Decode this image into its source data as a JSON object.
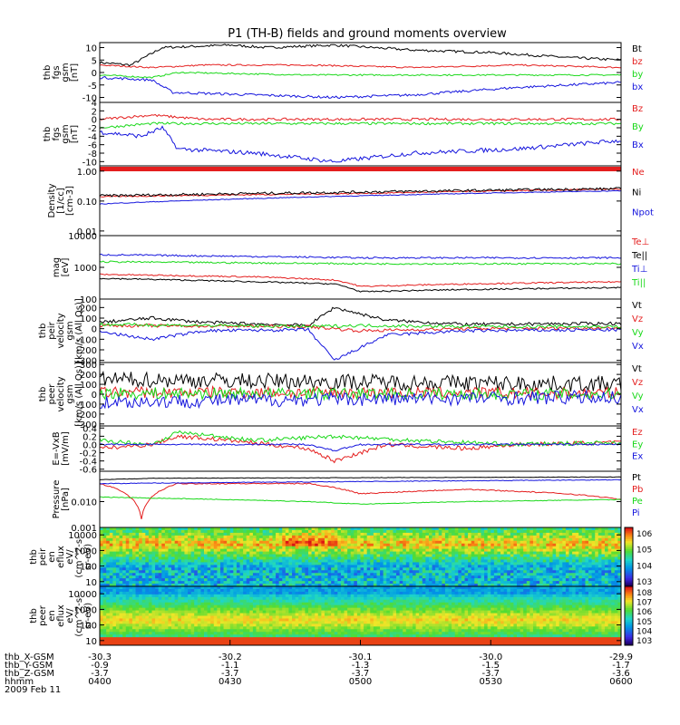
{
  "title": "P1 (TH-B) fields and ground moments overview",
  "colors": {
    "black": "#000000",
    "red": "#e41e1e",
    "green": "#18d818",
    "blue": "#1515dd"
  },
  "chart_data": [
    {
      "type": "line",
      "id": "p1",
      "ylabel": [
        "thb",
        "fgs",
        "gsm",
        "[nT]"
      ],
      "yticks": [
        "10",
        "5",
        "0",
        "-5",
        "-10"
      ],
      "ylim": [
        -12,
        12
      ],
      "log": false,
      "series": [
        {
          "name": "Bt",
          "color": "black",
          "anchors": [
            [
              0,
              4
            ],
            [
              0.06,
              3
            ],
            [
              0.12,
              10
            ],
            [
              0.25,
              11
            ],
            [
              0.32,
              10
            ],
            [
              0.45,
              11
            ],
            [
              0.6,
              9
            ],
            [
              0.75,
              8
            ],
            [
              0.9,
              6
            ],
            [
              1,
              5
            ]
          ],
          "noise": 0.5
        },
        {
          "name": "bz",
          "color": "red",
          "anchors": [
            [
              0,
              3
            ],
            [
              0.1,
              2
            ],
            [
              0.2,
              3
            ],
            [
              0.4,
              3
            ],
            [
              0.6,
              2
            ],
            [
              0.8,
              3
            ],
            [
              1,
              2
            ]
          ],
          "noise": 0.3
        },
        {
          "name": "by",
          "color": "green",
          "anchors": [
            [
              0,
              -1
            ],
            [
              0.1,
              -2
            ],
            [
              0.15,
              0
            ],
            [
              0.4,
              -1
            ],
            [
              0.6,
              -1
            ],
            [
              0.8,
              -1
            ],
            [
              1,
              -1
            ]
          ],
          "noise": 0.3
        },
        {
          "name": "bx",
          "color": "blue",
          "anchors": [
            [
              0,
              -2
            ],
            [
              0.1,
              -3
            ],
            [
              0.14,
              -8
            ],
            [
              0.3,
              -9
            ],
            [
              0.45,
              -10
            ],
            [
              0.6,
              -9
            ],
            [
              0.8,
              -6
            ],
            [
              1,
              -4
            ]
          ],
          "noise": 0.5
        }
      ]
    },
    {
      "type": "line",
      "id": "p2",
      "ylabel": [
        "thb",
        "fgs",
        "gsm",
        "[nT]"
      ],
      "yticks": [
        "4",
        "2",
        "0",
        "-2",
        "-4",
        "-6",
        "-8",
        "-10"
      ],
      "ylim": [
        -11,
        4
      ],
      "log": false,
      "series": [
        {
          "name": "Bz",
          "color": "red",
          "anchors": [
            [
              0,
              0
            ],
            [
              0.1,
              1
            ],
            [
              0.2,
              0
            ],
            [
              0.5,
              0
            ],
            [
              0.8,
              0
            ],
            [
              1,
              0
            ]
          ],
          "noise": 0.3
        },
        {
          "name": "By",
          "color": "green",
          "anchors": [
            [
              0,
              -2
            ],
            [
              0.1,
              -1
            ],
            [
              0.2,
              -1
            ],
            [
              0.5,
              -1
            ],
            [
              0.8,
              -1
            ],
            [
              1,
              -1
            ]
          ],
          "noise": 0.3
        },
        {
          "name": "Bx",
          "color": "blue",
          "anchors": [
            [
              0,
              -3
            ],
            [
              0.08,
              -4
            ],
            [
              0.12,
              -2
            ],
            [
              0.15,
              -7
            ],
            [
              0.3,
              -8
            ],
            [
              0.45,
              -10
            ],
            [
              0.6,
              -8
            ],
            [
              0.8,
              -7
            ],
            [
              1,
              -5
            ]
          ],
          "noise": 0.5
        }
      ]
    },
    {
      "type": "line",
      "id": "p3",
      "ylabel": [
        "Density",
        "[1/cc]",
        "[cm-3]"
      ],
      "yticks": [
        "1.00",
        "0.10",
        "0.01"
      ],
      "ylim": [
        0.007,
        1.5
      ],
      "log": true,
      "series": [
        {
          "name": "Ne",
          "color": "red",
          "anchors": [
            [
              0,
              0.14
            ],
            [
              0.5,
              0.18
            ],
            [
              1,
              0.25
            ]
          ],
          "noise": 0.05
        },
        {
          "name": "Ni",
          "color": "black",
          "anchors": [
            [
              0,
              0.15
            ],
            [
              0.5,
              0.2
            ],
            [
              1,
              0.26
            ]
          ],
          "noise": 0.1
        },
        {
          "name": "Npot",
          "color": "blue",
          "anchors": [
            [
              0,
              0.08
            ],
            [
              0.5,
              0.15
            ],
            [
              1,
              0.22
            ]
          ],
          "noise": 0.03
        }
      ]
    },
    {
      "type": "line",
      "id": "p4",
      "ylabel": [
        "mag",
        "[eV]"
      ],
      "yticks": [
        "10000",
        "1000",
        "100"
      ],
      "ylim": [
        100,
        10000
      ],
      "log": true,
      "series": [
        {
          "name": "Te⊥",
          "color": "red",
          "anchors": [
            [
              0,
              600
            ],
            [
              0.3,
              500
            ],
            [
              0.45,
              400
            ],
            [
              0.5,
              250
            ],
            [
              0.7,
              300
            ],
            [
              1,
              350
            ]
          ],
          "noise": 0.05
        },
        {
          "name": "Te||",
          "color": "black",
          "anchors": [
            [
              0,
              450
            ],
            [
              0.3,
              350
            ],
            [
              0.45,
              300
            ],
            [
              0.5,
              170
            ],
            [
              0.7,
              200
            ],
            [
              1,
              230
            ]
          ],
          "noise": 0.05
        },
        {
          "name": "Ti⊥",
          "color": "blue",
          "anchors": [
            [
              0,
              2500
            ],
            [
              0.5,
              2000
            ],
            [
              1,
              2000
            ]
          ],
          "noise": 0.06
        },
        {
          "name": "Ti||",
          "color": "green",
          "anchors": [
            [
              0,
              1500
            ],
            [
              0.5,
              1300
            ],
            [
              1,
              1300
            ]
          ],
          "noise": 0.06
        }
      ]
    },
    {
      "type": "line",
      "id": "p5",
      "ylabel": [
        "thb",
        "peir",
        "velocity",
        "gsm",
        "[km/s (All Qs)]"
      ],
      "yticks": [
        "200",
        "100",
        "0",
        "-100",
        "-200",
        "-300"
      ],
      "ylim": [
        -320,
        280
      ],
      "log": false,
      "series": [
        {
          "name": "Vt",
          "color": "black",
          "anchors": [
            [
              0,
              60
            ],
            [
              0.1,
              100
            ],
            [
              0.2,
              60
            ],
            [
              0.4,
              30
            ],
            [
              0.45,
              200
            ],
            [
              0.55,
              80
            ],
            [
              0.7,
              40
            ],
            [
              1,
              50
            ]
          ],
          "noise": 15
        },
        {
          "name": "Vz",
          "color": "red",
          "anchors": [
            [
              0,
              30
            ],
            [
              0.4,
              20
            ],
            [
              0.5,
              -20
            ],
            [
              0.7,
              0
            ],
            [
              1,
              10
            ]
          ],
          "noise": 15
        },
        {
          "name": "Vy",
          "color": "green",
          "anchors": [
            [
              0,
              40
            ],
            [
              0.4,
              20
            ],
            [
              0.5,
              30
            ],
            [
              0.7,
              20
            ],
            [
              1,
              20
            ]
          ],
          "noise": 15
        },
        {
          "name": "Vx",
          "color": "blue",
          "anchors": [
            [
              0,
              -30
            ],
            [
              0.1,
              -100
            ],
            [
              0.2,
              -20
            ],
            [
              0.4,
              -10
            ],
            [
              0.45,
              -300
            ],
            [
              0.55,
              -60
            ],
            [
              0.7,
              -20
            ],
            [
              1,
              -10
            ]
          ],
          "noise": 15
        }
      ]
    },
    {
      "type": "line",
      "id": "p6",
      "ylabel": [
        "thb",
        "peer",
        "velocity",
        "gsm",
        "[km/s (All Qs)]"
      ],
      "yticks": [
        "300",
        "200",
        "100",
        "0",
        "-100",
        "-200",
        "-300"
      ],
      "ylim": [
        -320,
        320
      ],
      "log": false,
      "series": [
        {
          "name": "Vt",
          "color": "black",
          "anchors": [
            [
              0,
              150
            ],
            [
              1,
              100
            ]
          ],
          "noise": 80
        },
        {
          "name": "Vz",
          "color": "red",
          "anchors": [
            [
              0,
              20
            ],
            [
              1,
              10
            ]
          ],
          "noise": 60
        },
        {
          "name": "Vy",
          "color": "green",
          "anchors": [
            [
              0,
              10
            ],
            [
              1,
              0
            ]
          ],
          "noise": 60
        },
        {
          "name": "Vx",
          "color": "blue",
          "anchors": [
            [
              0,
              -80
            ],
            [
              0.45,
              -50
            ],
            [
              1,
              -30
            ]
          ],
          "noise": 70
        }
      ]
    },
    {
      "type": "line",
      "id": "p7",
      "ylabel": [
        "E=-VxB",
        "[mV/m]"
      ],
      "yticks": [
        "0.4",
        "0.2",
        "0.0",
        "-0.2",
        "-0.4",
        "-0.6"
      ],
      "ylim": [
        -0.65,
        0.45
      ],
      "log": false,
      "series": [
        {
          "name": "Ez",
          "color": "red",
          "anchors": [
            [
              0,
              -0.1
            ],
            [
              0.1,
              0
            ],
            [
              0.15,
              0.2
            ],
            [
              0.25,
              0.1
            ],
            [
              0.4,
              -0.1
            ],
            [
              0.45,
              -0.4
            ],
            [
              0.55,
              0
            ],
            [
              0.7,
              -0.1
            ],
            [
              0.8,
              0
            ],
            [
              1,
              0.05
            ]
          ],
          "noise": 0.05
        },
        {
          "name": "Ey",
          "color": "green",
          "anchors": [
            [
              0,
              0.1
            ],
            [
              0.1,
              0
            ],
            [
              0.15,
              0.3
            ],
            [
              0.3,
              0.1
            ],
            [
              0.45,
              0.2
            ],
            [
              0.6,
              0.1
            ],
            [
              0.8,
              0
            ],
            [
              1,
              0.05
            ]
          ],
          "noise": 0.05
        },
        {
          "name": "Ex",
          "color": "blue",
          "anchors": [
            [
              0,
              0
            ],
            [
              0.4,
              0
            ],
            [
              0.45,
              -0.15
            ],
            [
              0.5,
              0
            ],
            [
              1,
              0
            ]
          ],
          "noise": 0.02
        }
      ]
    },
    {
      "type": "line",
      "id": "p8",
      "ylabel": [
        "Pressure",
        "[nPa]"
      ],
      "yticks": [
        "0.010",
        "0.001"
      ],
      "ylim": [
        0.001,
        0.15
      ],
      "log": true,
      "series": [
        {
          "name": "Pt",
          "color": "black",
          "anchors": [
            [
              0,
              0.07
            ],
            [
              0.1,
              0.08
            ],
            [
              1,
              0.09
            ]
          ],
          "noise": 0.02
        },
        {
          "name": "Pb",
          "color": "red",
          "anchors": [
            [
              0,
              0.05
            ],
            [
              0.05,
              0.02
            ],
            [
              0.08,
              0.002
            ],
            [
              0.1,
              0.015
            ],
            [
              0.15,
              0.05
            ],
            [
              0.4,
              0.05
            ],
            [
              0.5,
              0.02
            ],
            [
              0.7,
              0.03
            ],
            [
              0.9,
              0.02
            ],
            [
              1,
              0.012
            ]
          ],
          "noise": 0.05
        },
        {
          "name": "Pe",
          "color": "green",
          "anchors": [
            [
              0,
              0.015
            ],
            [
              0.4,
              0.01
            ],
            [
              0.5,
              0.008
            ],
            [
              0.7,
              0.01
            ],
            [
              1,
              0.012
            ]
          ],
          "noise": 0.03
        },
        {
          "name": "Pi",
          "color": "blue",
          "anchors": [
            [
              0,
              0.05
            ],
            [
              0.5,
              0.06
            ],
            [
              1,
              0.07
            ]
          ],
          "noise": 0.03
        }
      ]
    },
    {
      "type": "heatmap",
      "id": "p9",
      "ylabel": [
        "thb",
        "peir",
        "en",
        "eflux",
        "eV/",
        "(cm^2-s-",
        "sr-eV)"
      ],
      "yticks": [
        "10000",
        "1000",
        "100",
        "10"
      ],
      "ylim": [
        5,
        30000
      ],
      "log": true,
      "colorbar_labels": [
        "10^6",
        "10^5",
        "10^4",
        "10^3"
      ]
    },
    {
      "type": "heatmap",
      "id": "p10",
      "ylabel": [
        "thb",
        "peer",
        "en",
        "eflux",
        "eV/",
        "(cm^2-s-",
        "sr-eV)"
      ],
      "yticks": [
        "10000",
        "1000",
        "100",
        "10"
      ],
      "ylim": [
        5,
        30000
      ],
      "log": true,
      "colorbar_labels": [
        "10^8",
        "10^7",
        "10^6",
        "10^5",
        "10^4",
        "10^3"
      ]
    }
  ],
  "xaxis": {
    "rows": [
      {
        "label": "thb_X-GSM",
        "values": [
          "-30.3",
          "-30.2",
          "-30.1",
          "-30.0",
          "-29.9"
        ]
      },
      {
        "label": "thb_Y-GSM",
        "values": [
          "-0.9",
          "-1.1",
          "-1.3",
          "-1.5",
          "-1.7"
        ]
      },
      {
        "label": "thb_Z-GSM",
        "values": [
          "-3.7",
          "-3.7",
          "-3.7",
          "-3.7",
          "-3.6"
        ]
      },
      {
        "label": "hhmm",
        "values": [
          "0400",
          "0430",
          "0500",
          "0530",
          "0600"
        ]
      }
    ],
    "date": "2009 Feb 11"
  }
}
